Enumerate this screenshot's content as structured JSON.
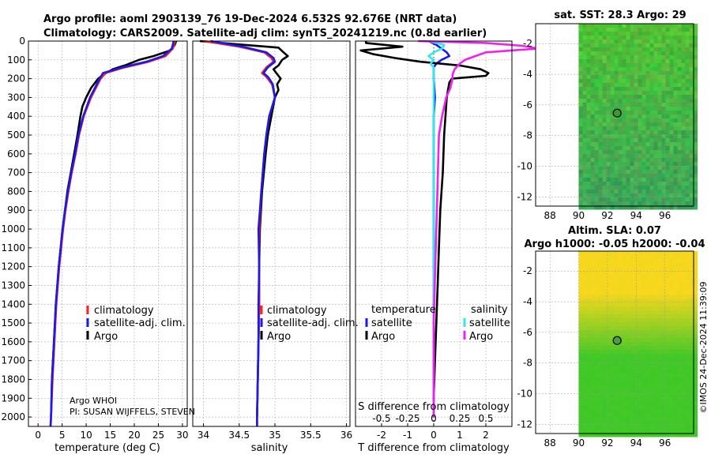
{
  "header": {
    "title_line1": "Argo profile: aoml 2903139_76 19-Dec-2024 6.532S 92.676E (NRT data)",
    "title_line2": "Climatology: CARS2009. Satellite-adj clim: synTS_20241219.nc (0.8d earlier)"
  },
  "footer": {
    "owner": "Argo WHOI",
    "pi": "PI: SUSAN WIJFFELS, STEVEN",
    "stamp": "©IMOS 24-Dec-2024 11:39:09"
  },
  "colors": {
    "climatology": "#ff2020",
    "satellite": "#1a1aee",
    "argo": "#000000",
    "temp_sat": "#1a1aee",
    "sal_sat": "#30e8f0",
    "sal_argo": "#f020f0",
    "grid": "#b8b8b8"
  },
  "legends": {
    "climatology": "climatology",
    "satellite_adj": "satellite-adj. clim.",
    "argo": "Argo",
    "temperature": "temperature",
    "salinity": "salinity",
    "satellite": "satellite"
  },
  "chart_data": [
    {
      "type": "line",
      "id": "temperature",
      "xlabel": "temperature (deg C)",
      "ylabel": "",
      "xlim": [
        -2,
        31
      ],
      "ylim": [
        2050,
        0
      ],
      "xticks": [
        "0",
        "5",
        "10",
        "15",
        "20",
        "25",
        "30"
      ],
      "xtick_values": [
        0,
        5,
        10,
        15,
        20,
        25,
        30
      ],
      "yticks": [
        "0",
        "100",
        "200",
        "300",
        "400",
        "500",
        "600",
        "700",
        "800",
        "900",
        "1000",
        "1100",
        "1200",
        "1300",
        "1400",
        "1500",
        "1600",
        "1700",
        "1800",
        "1900",
        "2000"
      ],
      "ytick_values": [
        0,
        100,
        200,
        300,
        400,
        500,
        600,
        700,
        800,
        900,
        1000,
        1100,
        1200,
        1300,
        1400,
        1500,
        1600,
        1700,
        1800,
        1900,
        2000
      ],
      "series": [
        {
          "name": "climatology",
          "depth": [
            0,
            40,
            80,
            110,
            140,
            170,
            200,
            250,
            300,
            400,
            500,
            600,
            700,
            800,
            900,
            1000,
            1200,
            1400,
            1600,
            1800,
            2000,
            2050
          ],
          "values": [
            28.5,
            28,
            26.5,
            23,
            18,
            14,
            13,
            12,
            11,
            9.5,
            8.5,
            7.8,
            7,
            6.3,
            5.7,
            5.2,
            4.4,
            3.8,
            3.4,
            3.0,
            2.7,
            2.6
          ]
        },
        {
          "name": "satellite-adj. clim.",
          "depth": [
            0,
            40,
            80,
            110,
            140,
            170,
            200,
            250,
            300,
            400,
            500,
            600,
            700,
            800,
            900,
            1000,
            1200,
            1400,
            1600,
            1800,
            2000,
            2050
          ],
          "values": [
            28.2,
            27.8,
            26,
            22.5,
            17.5,
            13.5,
            12.8,
            11.8,
            10.8,
            9.4,
            8.4,
            7.7,
            6.9,
            6.2,
            5.6,
            5.1,
            4.3,
            3.7,
            3.3,
            2.9,
            2.7,
            2.6
          ]
        },
        {
          "name": "Argo",
          "depth": [
            0,
            20,
            50,
            80,
            100,
            130,
            150,
            180,
            200,
            250,
            300,
            350,
            400,
            500,
            600,
            700,
            800,
            900,
            1000,
            1200,
            1400,
            1600,
            1800,
            2000
          ],
          "values": [
            28.7,
            28.4,
            27.5,
            24,
            21,
            18,
            15.5,
            13.5,
            12.5,
            11,
            10,
            9.2,
            8.8,
            8.2,
            7.5,
            6.8,
            6.1,
            5.6,
            5.1,
            4.3,
            3.7,
            3.3,
            2.9,
            2.7
          ]
        }
      ]
    },
    {
      "type": "line",
      "id": "salinity",
      "xlabel": "salinity",
      "xlim": [
        33.85,
        36.05
      ],
      "ylim": [
        2050,
        0
      ],
      "xticks": [
        "34",
        "34.5",
        "35",
        "35.5",
        "36"
      ],
      "xtick_values": [
        34,
        34.5,
        35,
        35.5,
        36
      ],
      "series": [
        {
          "name": "climatology",
          "depth": [
            0,
            30,
            60,
            90,
            110,
            140,
            170,
            190,
            200,
            230,
            300,
            400,
            500,
            600,
            800,
            1000,
            1200,
            1400,
            1600,
            1800,
            2000,
            2050
          ],
          "values": [
            34.0,
            34.5,
            34.85,
            34.95,
            34.98,
            34.88,
            34.82,
            34.88,
            34.9,
            34.96,
            35.0,
            34.92,
            34.88,
            34.85,
            34.81,
            34.78,
            34.78,
            34.78,
            34.77,
            34.76,
            34.75,
            34.75
          ]
        },
        {
          "name": "satellite-adj. clim.",
          "depth": [
            0,
            30,
            60,
            90,
            110,
            140,
            170,
            190,
            200,
            230,
            300,
            400,
            500,
            600,
            800,
            1000,
            1200,
            1400,
            1600,
            1800,
            2000,
            2050
          ],
          "values": [
            34.1,
            34.55,
            34.88,
            34.98,
            35.0,
            34.9,
            34.84,
            34.9,
            34.92,
            34.97,
            35.0,
            34.92,
            34.88,
            34.85,
            34.81,
            34.77,
            34.78,
            34.77,
            34.77,
            34.76,
            34.75,
            34.75
          ]
        },
        {
          "name": "Argo",
          "depth": [
            0,
            15,
            35,
            60,
            80,
            100,
            130,
            150,
            170,
            200,
            230,
            260,
            300,
            400,
            500,
            600,
            800,
            1000,
            1200,
            1400,
            1600,
            1800,
            2000
          ],
          "values": [
            33.95,
            34.4,
            35.05,
            35.12,
            35.18,
            35.1,
            35.05,
            34.98,
            35.02,
            35.08,
            35.03,
            35.05,
            35.0,
            34.95,
            34.9,
            34.87,
            34.82,
            34.79,
            34.78,
            34.78,
            34.77,
            34.76,
            34.75
          ]
        }
      ]
    },
    {
      "type": "line",
      "id": "difference",
      "xlabel": "T difference from climatology",
      "xlabel_top": "S difference from climatology",
      "xlim": [
        -3,
        3
      ],
      "ylim": [
        2050,
        0
      ],
      "xticks": [
        "-2",
        "-1",
        "0",
        "1",
        "2"
      ],
      "xtick_values": [
        -2,
        -1,
        0,
        1,
        2
      ],
      "xticks_salinity": [
        "-0.5",
        "-0.25",
        "0",
        "0.25",
        "0.5"
      ],
      "xtick_values_salinity": [
        -0.5,
        -0.25,
        0,
        0.25,
        0.5
      ],
      "series": [
        {
          "name": "temperature satellite",
          "depth": [
            0,
            20,
            40,
            60,
            80,
            100,
            120,
            140,
            160,
            180,
            200,
            300,
            400,
            600,
            800,
            1000,
            1200,
            1400,
            1600,
            1800,
            2000
          ],
          "values": [
            -0.2,
            0.1,
            0.3,
            0.5,
            0.6,
            0.3,
            0.1,
            0.0,
            0.0,
            0.0,
            0.0,
            0.05,
            0.0,
            0.0,
            0.0,
            0.0,
            0.0,
            0.0,
            0.0,
            0.0,
            0.0
          ]
        },
        {
          "name": "temperature Argo",
          "depth": [
            0,
            10,
            30,
            50,
            70,
            90,
            110,
            130,
            150,
            170,
            185,
            200,
            220,
            260,
            300,
            400,
            500,
            700,
            900,
            1100,
            1300,
            1500,
            1700,
            1900,
            2000
          ],
          "values": [
            -2.6,
            -2.6,
            -1.2,
            -2.8,
            -2.3,
            -1.5,
            -0.5,
            1.0,
            1.8,
            2.1,
            2.0,
            0.7,
            0.6,
            0.55,
            0.5,
            0.45,
            0.4,
            0.35,
            0.25,
            0.2,
            0.15,
            0.1,
            0.05,
            0.0,
            0.0
          ]
        },
        {
          "name": "salinity satellite",
          "depth": [
            0,
            20,
            40,
            60,
            80,
            100,
            120,
            140,
            160,
            200,
            300,
            400,
            600,
            800,
            1000,
            1200,
            1400,
            1600,
            1800,
            2000
          ],
          "values": [
            -0.05,
            0.1,
            0.08,
            0.0,
            -0.05,
            0.0,
            -0.03,
            0.0,
            0.0,
            0.0,
            0.0,
            0.0,
            0.0,
            0.0,
            0.0,
            0.0,
            0.0,
            0.0,
            0.0,
            0.0
          ]
        },
        {
          "name": "salinity Argo",
          "depth": [
            0,
            10,
            25,
            40,
            60,
            80,
            100,
            120,
            150,
            180,
            200,
            250,
            300,
            400,
            500,
            700,
            900,
            1100,
            1300,
            1500,
            1700,
            1900,
            2000
          ],
          "values": [
            -0.15,
            0.5,
            0.85,
            1.0,
            0.5,
            0.4,
            0.3,
            0.25,
            0.2,
            0.18,
            0.18,
            0.16,
            0.12,
            0.08,
            0.05,
            0.04,
            0.03,
            0.02,
            0.01,
            0.0,
            0.0,
            0.0,
            0.0
          ]
        }
      ]
    },
    {
      "type": "heatmap",
      "id": "sst-map",
      "title": "sat. SST: 28.3 Argo: 29",
      "xlim": [
        87,
        98
      ],
      "ylim": [
        -12.6,
        -0.7
      ],
      "xticks": [
        "88",
        "90",
        "92",
        "94",
        "96"
      ],
      "xtick_values": [
        88,
        90,
        92,
        94,
        96
      ],
      "yticks": [
        "-2",
        "-4",
        "-6",
        "-8",
        "-10",
        "-12"
      ],
      "ytick_values": [
        -2,
        -4,
        -6,
        -8,
        -10,
        -12
      ],
      "marker": {
        "lon": 92.676,
        "lat": -6.532
      }
    },
    {
      "type": "heatmap",
      "id": "sla-map",
      "title_line1": "Altim. SLA: 0.07",
      "title_line2": "Argo h1000: -0.05 h2000: -0.04",
      "xlim": [
        87,
        98
      ],
      "ylim": [
        -12.6,
        -0.7
      ],
      "xticks": [
        "88",
        "90",
        "92",
        "94",
        "96"
      ],
      "xtick_values": [
        88,
        90,
        92,
        94,
        96
      ],
      "yticks": [
        "-2",
        "-4",
        "-6",
        "-8",
        "-10",
        "-12"
      ],
      "ytick_values": [
        -2,
        -4,
        -6,
        -8,
        -10,
        -12
      ],
      "marker": {
        "lon": 92.676,
        "lat": -6.532
      }
    }
  ]
}
